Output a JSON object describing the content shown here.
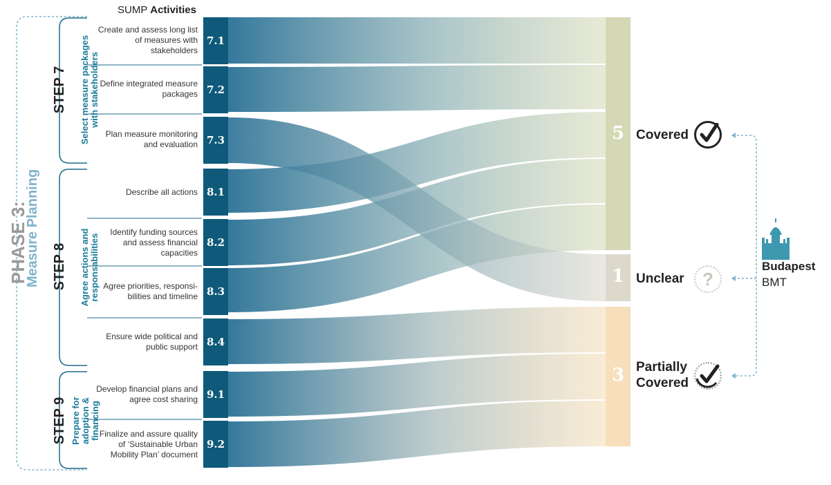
{
  "header": {
    "prefix": "SUMP ",
    "bold": "Activities"
  },
  "phase": {
    "title": "PHASE 3:",
    "subtitle": "Measure Planning"
  },
  "steps": [
    {
      "title": "STEP 7",
      "subtitle_lines": [
        "Select measure packages",
        "with stakeholders"
      ]
    },
    {
      "title": "STEP 8",
      "subtitle_lines": [
        "Agree actions and",
        "responsabilities"
      ]
    },
    {
      "title": "STEP 9",
      "subtitle_lines": [
        "Prepare for",
        "adoption &",
        "financing"
      ]
    }
  ],
  "activities": [
    {
      "code": "7.1",
      "lines": [
        "Create and assess long list",
        "of measures with",
        "stakeholders"
      ],
      "status": "Covered"
    },
    {
      "code": "7.2",
      "lines": [
        "Define integrated measure",
        "packages"
      ],
      "status": "Covered"
    },
    {
      "code": "7.3",
      "lines": [
        "Plan measure monitoring",
        "and evaluation"
      ],
      "status": "Unclear"
    },
    {
      "code": "8.1",
      "lines": [
        "Describe all actions"
      ],
      "status": "Covered"
    },
    {
      "code": "8.2",
      "lines": [
        "Identify funding sources",
        "and assess financial",
        "capacities"
      ],
      "status": "Covered"
    },
    {
      "code": "8.3",
      "lines": [
        "Agree priorities, responsi-",
        "bilities and timeline"
      ],
      "status": "Covered"
    },
    {
      "code": "8.4",
      "lines": [
        "Ensure wide political and",
        "public support"
      ],
      "status": "Partially Covered"
    },
    {
      "code": "9.1",
      "lines": [
        "Develop financial plans and",
        "agree cost sharing"
      ],
      "status": "Partially Covered"
    },
    {
      "code": "9.2",
      "lines": [
        "Finalize and assure quality",
        "of ‘Sustainable Urban",
        "Mobility Plan’ document"
      ],
      "status": "Partially Covered"
    }
  ],
  "categories": [
    {
      "count": "5",
      "label_lines": [
        "Covered"
      ],
      "color": "#d4d8b4",
      "icon": "check-circle-icon"
    },
    {
      "count": "1",
      "label_lines": [
        "Unclear"
      ],
      "color": "#dcd8cc",
      "icon": "question-circle-icon"
    },
    {
      "count": "3",
      "label_lines": [
        "Partially",
        "Covered"
      ],
      "color": "#f6dfba",
      "icon": "partial-check-circle-icon"
    }
  ],
  "source": {
    "name": "Budapest",
    "org": "BMT",
    "icon": "parliament-building-icon"
  },
  "colors": {
    "code_box": "#0f5a7a",
    "flow_start": "#2a7196",
    "connector": "#7fb3cc",
    "accent_text": "#1a7a9a"
  }
}
